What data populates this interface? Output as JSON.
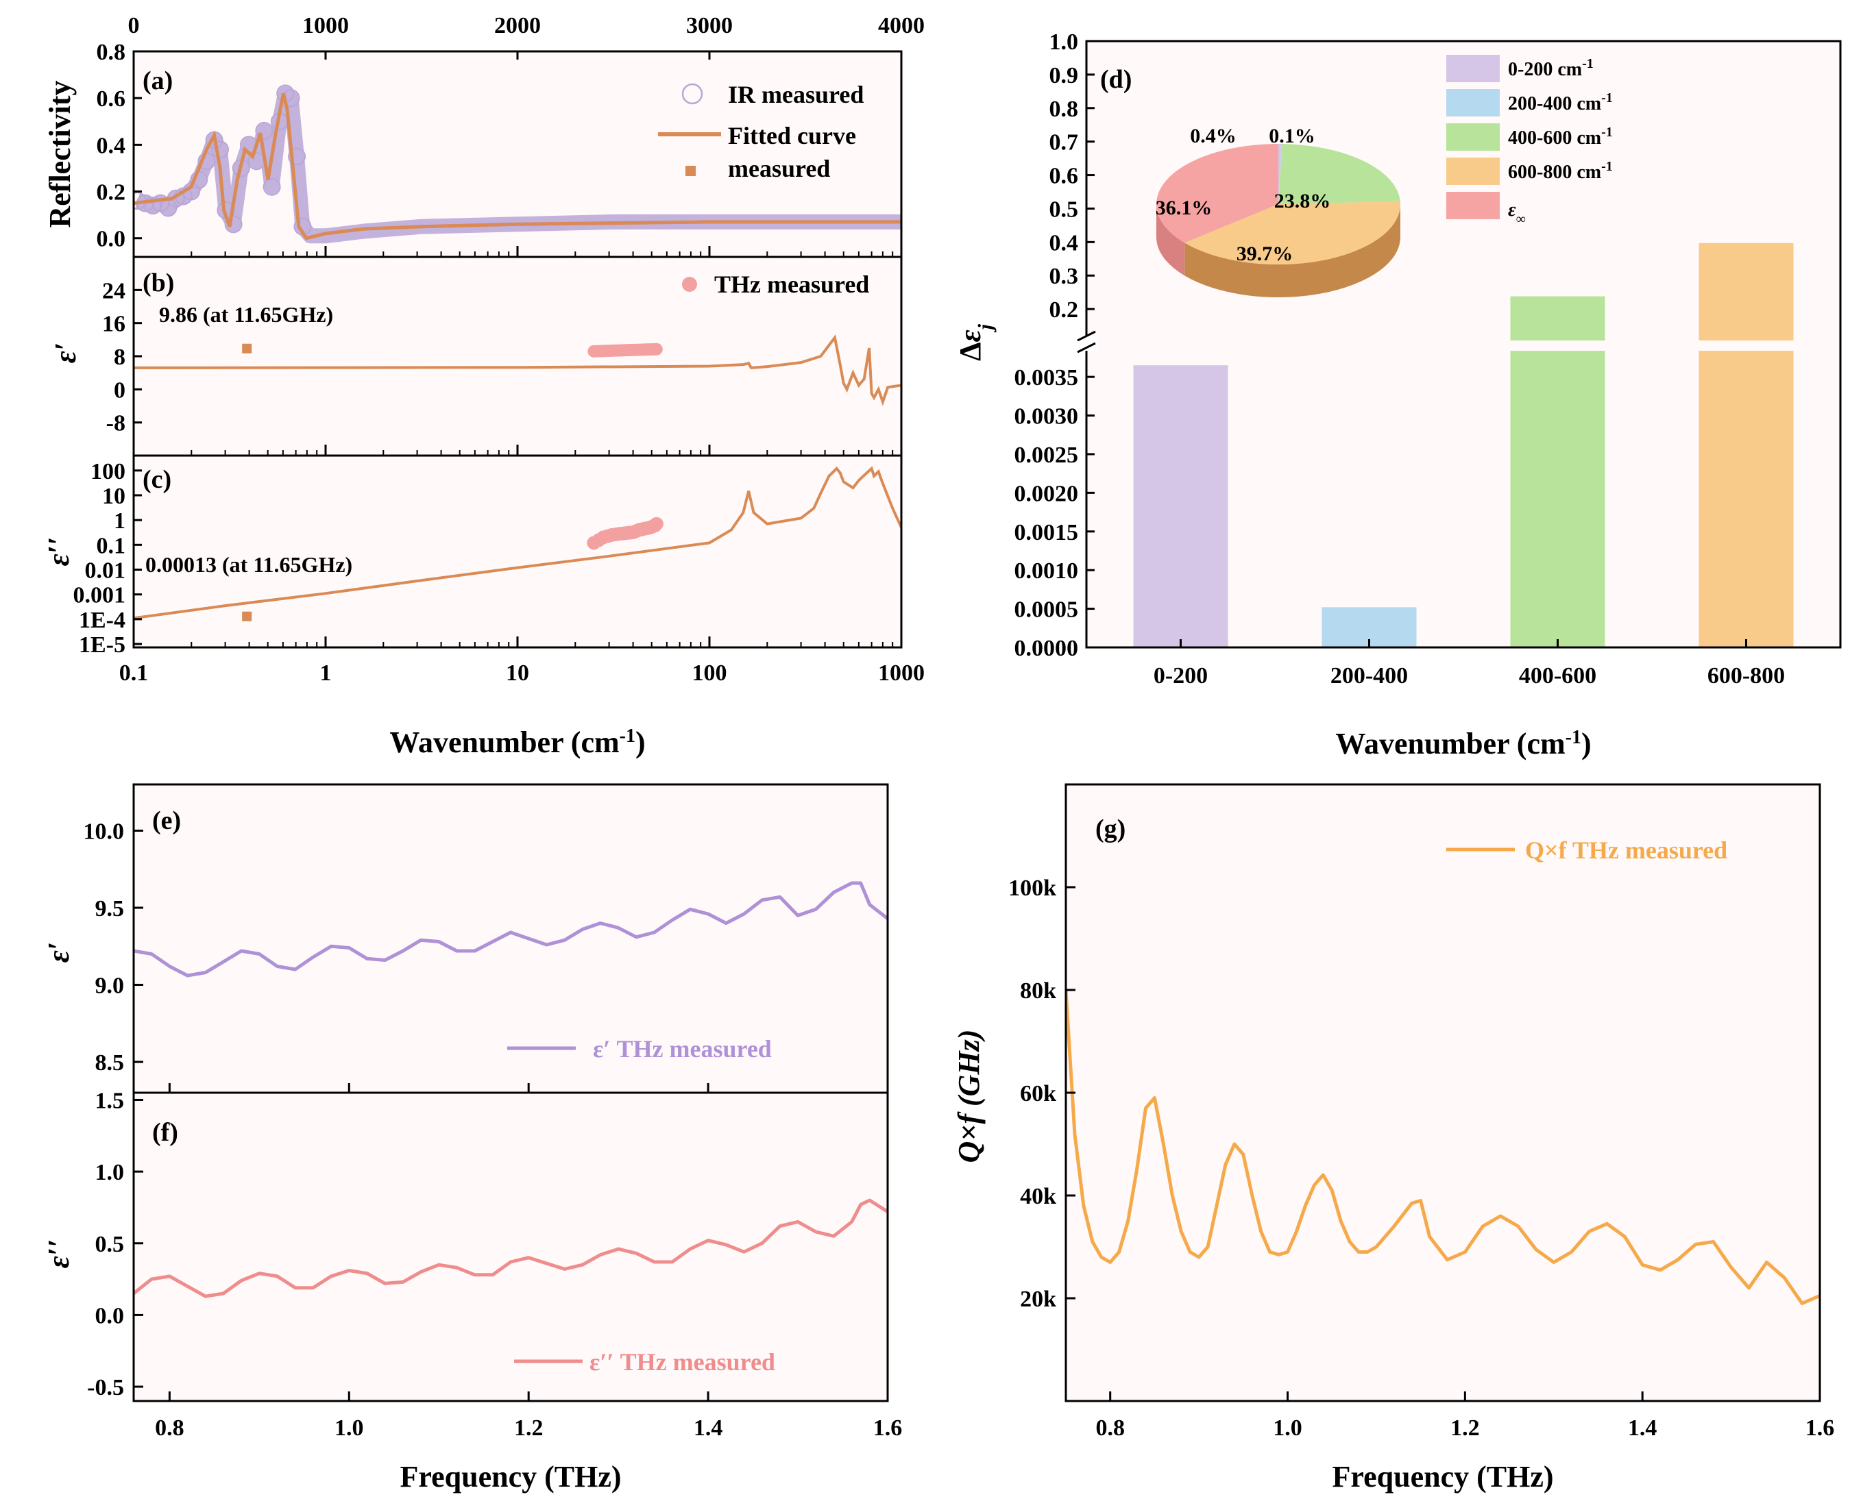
{
  "colors": {
    "ir_marker": "#b9a6d6",
    "fit_line": "#d98a55",
    "thz_marker": "#f2a0a0",
    "purple": "#ae91d6",
    "pink": "#ef8d8d",
    "orange": "#f6a94a",
    "bar_purple": "#d5c6e8",
    "bar_blue": "#b5d9ef",
    "bar_green": "#b8e39a",
    "bar_orange": "#f9cb8a",
    "bar_pink": "#f5a3a3",
    "panel_bg": "#fff7f7"
  },
  "chart_data": [
    {
      "id": "a",
      "type": "line",
      "panel_label": "(a)",
      "ylabel": "Reflectivity",
      "top_xaxis_ticks": [
        "0",
        "1000",
        "2000",
        "3000",
        "4000"
      ],
      "top_xlim": [
        0,
        4000
      ],
      "y_ticks": [
        "0.0",
        "0.2",
        "0.4",
        "0.6",
        "0.8"
      ],
      "ylim": [
        -0.08,
        0.8
      ],
      "legend": [
        "IR measured",
        "Fitted curve",
        "measured"
      ],
      "series": [
        {
          "name": "IR measured",
          "x": [
            20,
            60,
            100,
            140,
            180,
            220,
            260,
            300,
            340,
            380,
            420,
            450,
            480,
            520,
            560,
            600,
            640,
            680,
            720,
            760,
            790,
            820,
            850,
            880,
            920,
            1000,
            1200,
            1500,
            2000,
            2500,
            3000,
            3500,
            4000
          ],
          "y": [
            0.16,
            0.15,
            0.14,
            0.15,
            0.13,
            0.17,
            0.18,
            0.2,
            0.25,
            0.33,
            0.42,
            0.38,
            0.12,
            0.06,
            0.3,
            0.4,
            0.33,
            0.46,
            0.22,
            0.5,
            0.62,
            0.6,
            0.35,
            0.05,
            0.01,
            0.01,
            0.03,
            0.05,
            0.06,
            0.07,
            0.07,
            0.07,
            0.07
          ]
        },
        {
          "name": "Fitted curve",
          "x": [
            0,
            100,
            200,
            300,
            340,
            380,
            420,
            450,
            470,
            500,
            540,
            580,
            620,
            660,
            700,
            740,
            780,
            800,
            830,
            860,
            900,
            1000,
            1200,
            1500,
            2000,
            2500,
            3000,
            3500,
            4000
          ],
          "y": [
            0.15,
            0.16,
            0.17,
            0.22,
            0.3,
            0.38,
            0.44,
            0.3,
            0.12,
            0.05,
            0.25,
            0.38,
            0.35,
            0.45,
            0.25,
            0.45,
            0.62,
            0.55,
            0.3,
            0.05,
            0.0,
            0.02,
            0.04,
            0.05,
            0.06,
            0.065,
            0.07,
            0.07,
            0.07
          ]
        }
      ]
    },
    {
      "id": "b",
      "type": "line",
      "panel_label": "(b)",
      "ylabel": "ε′",
      "y_ticks": [
        "-8",
        "0",
        "8",
        "16",
        "24"
      ],
      "ylim": [
        -16,
        32
      ],
      "annotation": "9.86 (at 11.65GHz)",
      "legend": [
        "THz measured"
      ],
      "measured_point": {
        "x": 0.389,
        "y": 9.86
      },
      "thz_points": {
        "x_range": [
          25,
          53
        ],
        "y_range": [
          9.2,
          9.7
        ]
      },
      "series": [
        {
          "name": "Fitted curve",
          "x": [
            0.1,
            1,
            10,
            100,
            150,
            160,
            165,
            200,
            300,
            380,
            450,
            480,
            500,
            520,
            560,
            600,
            640,
            680,
            700,
            720,
            760,
            800,
            850,
            1000
          ],
          "y": [
            5.2,
            5.25,
            5.3,
            5.6,
            6,
            6.3,
            5.2,
            5.5,
            6.5,
            8,
            12.5,
            6,
            1.5,
            0,
            4,
            1,
            2.5,
            10,
            -1,
            -2,
            0,
            -3,
            0.5,
            1
          ]
        }
      ]
    },
    {
      "id": "c",
      "type": "line",
      "panel_label": "(c)",
      "ylabel": "ε′′",
      "y_ticks": [
        "1E-5",
        "1E-4",
        "0.001",
        "0.01",
        "0.1",
        "1",
        "10",
        "100"
      ],
      "annotation": "0.00013 (at 11.65GHz)",
      "xlabel": "Wavenumber (cm-1)",
      "x_ticks": [
        "0.1",
        "1",
        "10",
        "100",
        "1000"
      ],
      "xlim": [
        0.1,
        1000
      ],
      "measured_point": {
        "x": 0.389,
        "y": 0.00013
      },
      "series": [
        {
          "name": "Fitted curve",
          "x": [
            0.1,
            0.3,
            1,
            3,
            10,
            30,
            100,
            130,
            150,
            160,
            170,
            200,
            300,
            350,
            380,
            420,
            460,
            480,
            500,
            560,
            600,
            660,
            700,
            720,
            760,
            800,
            900,
            1000
          ],
          "y": [
            0.00011,
            0.00035,
            0.0011,
            0.0035,
            0.012,
            0.035,
            0.12,
            0.4,
            2,
            15,
            2,
            0.7,
            1.2,
            3,
            12,
            60,
            120,
            80,
            35,
            20,
            40,
            80,
            120,
            60,
            90,
            30,
            3,
            0.5
          ]
        },
        {
          "name": "THz measured",
          "x": [
            25,
            28,
            31,
            34,
            37,
            40,
            43,
            46,
            49,
            52,
            53
          ],
          "y": [
            0.12,
            0.2,
            0.25,
            0.28,
            0.3,
            0.32,
            0.4,
            0.45,
            0.5,
            0.6,
            0.7
          ]
        }
      ]
    },
    {
      "id": "d",
      "type": "bar",
      "panel_label": "(d)",
      "ylabel": "Δε_j",
      "xlabel": "Wavenumber (cm-1)",
      "categories": [
        "0-200",
        "200-400",
        "400-600",
        "600-800"
      ],
      "values": [
        0.00365,
        0.00052,
        0.238,
        0.397
      ],
      "y_ticks_lower": [
        "0.0000",
        "0.0005",
        "0.0010",
        "0.0015",
        "0.0020",
        "0.0025",
        "0.0030",
        "0.0035"
      ],
      "ylim_lower": [
        0,
        0.0039
      ],
      "y_ticks_upper": [
        "0.2",
        "0.3",
        "0.4",
        "0.5",
        "0.6",
        "0.7",
        "0.8",
        "0.9",
        "1.0"
      ],
      "ylim_upper": [
        0.1,
        1.0
      ],
      "legend": [
        "0-200 cm-1",
        "200-400 cm-1",
        "400-600 cm-1",
        "600-800 cm-1",
        "ε∞"
      ],
      "pie": {
        "labels": [
          "0-200",
          "200-400",
          "400-600",
          "600-800",
          "ε∞"
        ],
        "values": [
          0.4,
          0.1,
          23.8,
          39.7,
          36.1
        ],
        "value_labels": [
          "0.4%",
          "0.1%",
          "23.8%",
          "39.7%",
          "36.1%"
        ]
      }
    },
    {
      "id": "e",
      "type": "line",
      "panel_label": "(e)",
      "ylabel": "ε′",
      "legend": [
        "ε′ THz measured"
      ],
      "y_ticks": [
        "8.5",
        "9.0",
        "9.5",
        "10.0"
      ],
      "ylim": [
        8.3,
        10.3
      ],
      "xlim": [
        0.76,
        1.6
      ],
      "series": [
        {
          "name": "ε′ THz measured",
          "x": [
            0.76,
            0.78,
            0.8,
            0.82,
            0.84,
            0.86,
            0.88,
            0.9,
            0.92,
            0.94,
            0.96,
            0.98,
            1.0,
            1.02,
            1.04,
            1.06,
            1.08,
            1.1,
            1.12,
            1.14,
            1.16,
            1.18,
            1.2,
            1.22,
            1.24,
            1.26,
            1.28,
            1.3,
            1.32,
            1.34,
            1.36,
            1.38,
            1.4,
            1.42,
            1.44,
            1.46,
            1.48,
            1.5,
            1.52,
            1.54,
            1.56,
            1.57,
            1.58,
            1.6
          ],
          "y": [
            9.22,
            9.2,
            9.12,
            9.06,
            9.08,
            9.15,
            9.22,
            9.2,
            9.12,
            9.1,
            9.18,
            9.25,
            9.24,
            9.17,
            9.16,
            9.22,
            9.29,
            9.28,
            9.22,
            9.22,
            9.28,
            9.34,
            9.3,
            9.26,
            9.29,
            9.36,
            9.4,
            9.37,
            9.31,
            9.34,
            9.42,
            9.49,
            9.46,
            9.4,
            9.46,
            9.55,
            9.57,
            9.45,
            9.49,
            9.6,
            9.66,
            9.66,
            9.52,
            9.43
          ]
        }
      ]
    },
    {
      "id": "f",
      "type": "line",
      "panel_label": "(f)",
      "ylabel": "ε′′",
      "legend": [
        "ε′′ THz measured"
      ],
      "xlabel": "Frequency (THz)",
      "y_ticks": [
        "-0.5",
        "0.0",
        "0.5",
        "1.0",
        "1.5"
      ],
      "ylim": [
        -0.6,
        1.55
      ],
      "x_ticks": [
        "0.8",
        "1.0",
        "1.2",
        "1.4",
        "1.6"
      ],
      "xlim": [
        0.76,
        1.6
      ],
      "series": [
        {
          "name": "ε′′ THz measured",
          "x": [
            0.76,
            0.78,
            0.8,
            0.82,
            0.84,
            0.86,
            0.88,
            0.9,
            0.92,
            0.94,
            0.96,
            0.98,
            1.0,
            1.02,
            1.04,
            1.06,
            1.08,
            1.1,
            1.12,
            1.14,
            1.16,
            1.18,
            1.2,
            1.22,
            1.24,
            1.26,
            1.28,
            1.3,
            1.32,
            1.34,
            1.36,
            1.38,
            1.4,
            1.42,
            1.44,
            1.46,
            1.48,
            1.5,
            1.52,
            1.54,
            1.56,
            1.57,
            1.58,
            1.6
          ],
          "y": [
            0.15,
            0.25,
            0.27,
            0.2,
            0.13,
            0.15,
            0.24,
            0.29,
            0.27,
            0.19,
            0.19,
            0.27,
            0.31,
            0.29,
            0.22,
            0.23,
            0.3,
            0.35,
            0.33,
            0.28,
            0.28,
            0.37,
            0.4,
            0.36,
            0.32,
            0.35,
            0.42,
            0.46,
            0.43,
            0.37,
            0.37,
            0.46,
            0.52,
            0.49,
            0.44,
            0.5,
            0.62,
            0.65,
            0.58,
            0.55,
            0.65,
            0.77,
            0.8,
            0.72
          ]
        }
      ]
    },
    {
      "id": "g",
      "type": "line",
      "panel_label": "(g)",
      "ylabel": "Q×f (GHz)",
      "legend": [
        "Q×f THz measured"
      ],
      "xlabel": "Frequency (THz)",
      "y_ticks": [
        "20k",
        "40k",
        "60k",
        "80k",
        "100k"
      ],
      "ylim": [
        0,
        120000
      ],
      "x_ticks": [
        "0.8",
        "1.0",
        "1.2",
        "1.4",
        "1.6"
      ],
      "xlim": [
        0.75,
        1.6
      ],
      "series": [
        {
          "name": "Q×f THz measured",
          "x": [
            0.75,
            0.76,
            0.77,
            0.78,
            0.79,
            0.8,
            0.81,
            0.82,
            0.83,
            0.84,
            0.85,
            0.86,
            0.87,
            0.88,
            0.89,
            0.9,
            0.91,
            0.92,
            0.93,
            0.94,
            0.95,
            0.96,
            0.97,
            0.98,
            0.99,
            1.0,
            1.01,
            1.02,
            1.03,
            1.04,
            1.05,
            1.06,
            1.07,
            1.08,
            1.09,
            1.1,
            1.12,
            1.14,
            1.15,
            1.16,
            1.18,
            1.2,
            1.22,
            1.24,
            1.26,
            1.28,
            1.3,
            1.32,
            1.34,
            1.36,
            1.38,
            1.4,
            1.42,
            1.44,
            1.46,
            1.48,
            1.5,
            1.52,
            1.54,
            1.56,
            1.58,
            1.6
          ],
          "y": [
            80000,
            52000,
            38000,
            31000,
            28000,
            27000,
            29000,
            35000,
            45000,
            57000,
            59000,
            50000,
            40000,
            33000,
            29000,
            28000,
            30000,
            38000,
            46000,
            50000,
            48000,
            40000,
            33000,
            29000,
            28500,
            29000,
            33000,
            38000,
            42000,
            44000,
            41000,
            35000,
            31000,
            29000,
            29000,
            30000,
            34000,
            38500,
            39000,
            32000,
            27500,
            29000,
            34000,
            36000,
            34000,
            29500,
            27000,
            29000,
            33000,
            34500,
            32000,
            26500,
            25500,
            27500,
            30500,
            31000,
            26000,
            22000,
            27000,
            24000,
            19000,
            20500
          ]
        }
      ]
    }
  ]
}
